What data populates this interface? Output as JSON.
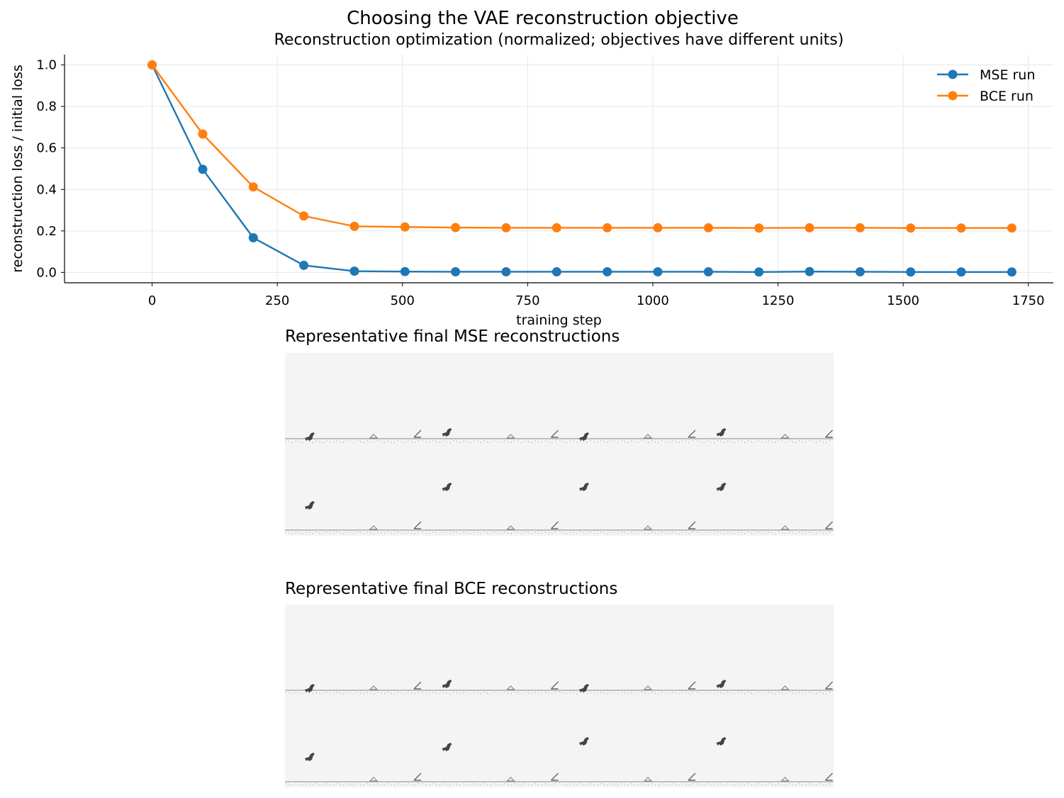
{
  "suptitle": "Choosing the VAE reconstruction objective",
  "chart_data": {
    "type": "line",
    "title": "Reconstruction optimization (normalized; objectives have different units)",
    "xlabel": "training step",
    "ylabel": "reconstruction loss / initial loss",
    "xlim": [
      -175,
      1800
    ],
    "ylim": [
      -0.05,
      1.05
    ],
    "xticks": [
      0,
      250,
      500,
      750,
      1000,
      1250,
      1500,
      1750
    ],
    "yticks": [
      0.0,
      0.2,
      0.4,
      0.6,
      0.8,
      1.0
    ],
    "grid": true,
    "legend_position": "top-right",
    "x": [
      0,
      101,
      202,
      303,
      404,
      505,
      606,
      707,
      808,
      909,
      1010,
      1111,
      1212,
      1313,
      1414,
      1515,
      1616,
      1717
    ],
    "series": [
      {
        "name": "MSE run",
        "color": "#1f77b4",
        "values": [
          1.0,
          0.497,
          0.167,
          0.034,
          0.006,
          0.004,
          0.003,
          0.003,
          0.003,
          0.003,
          0.003,
          0.003,
          0.002,
          0.004,
          0.003,
          0.002,
          0.002,
          0.002
        ]
      },
      {
        "name": "BCE run",
        "color": "#ff7f0e",
        "values": [
          1.0,
          0.667,
          0.412,
          0.272,
          0.222,
          0.219,
          0.216,
          0.215,
          0.215,
          0.215,
          0.215,
          0.215,
          0.214,
          0.215,
          0.215,
          0.214,
          0.214,
          0.214
        ]
      }
    ]
  },
  "panels": {
    "mse_title": "Representative final MSE reconstructions",
    "bce_title": "Representative final BCE reconstructions"
  }
}
